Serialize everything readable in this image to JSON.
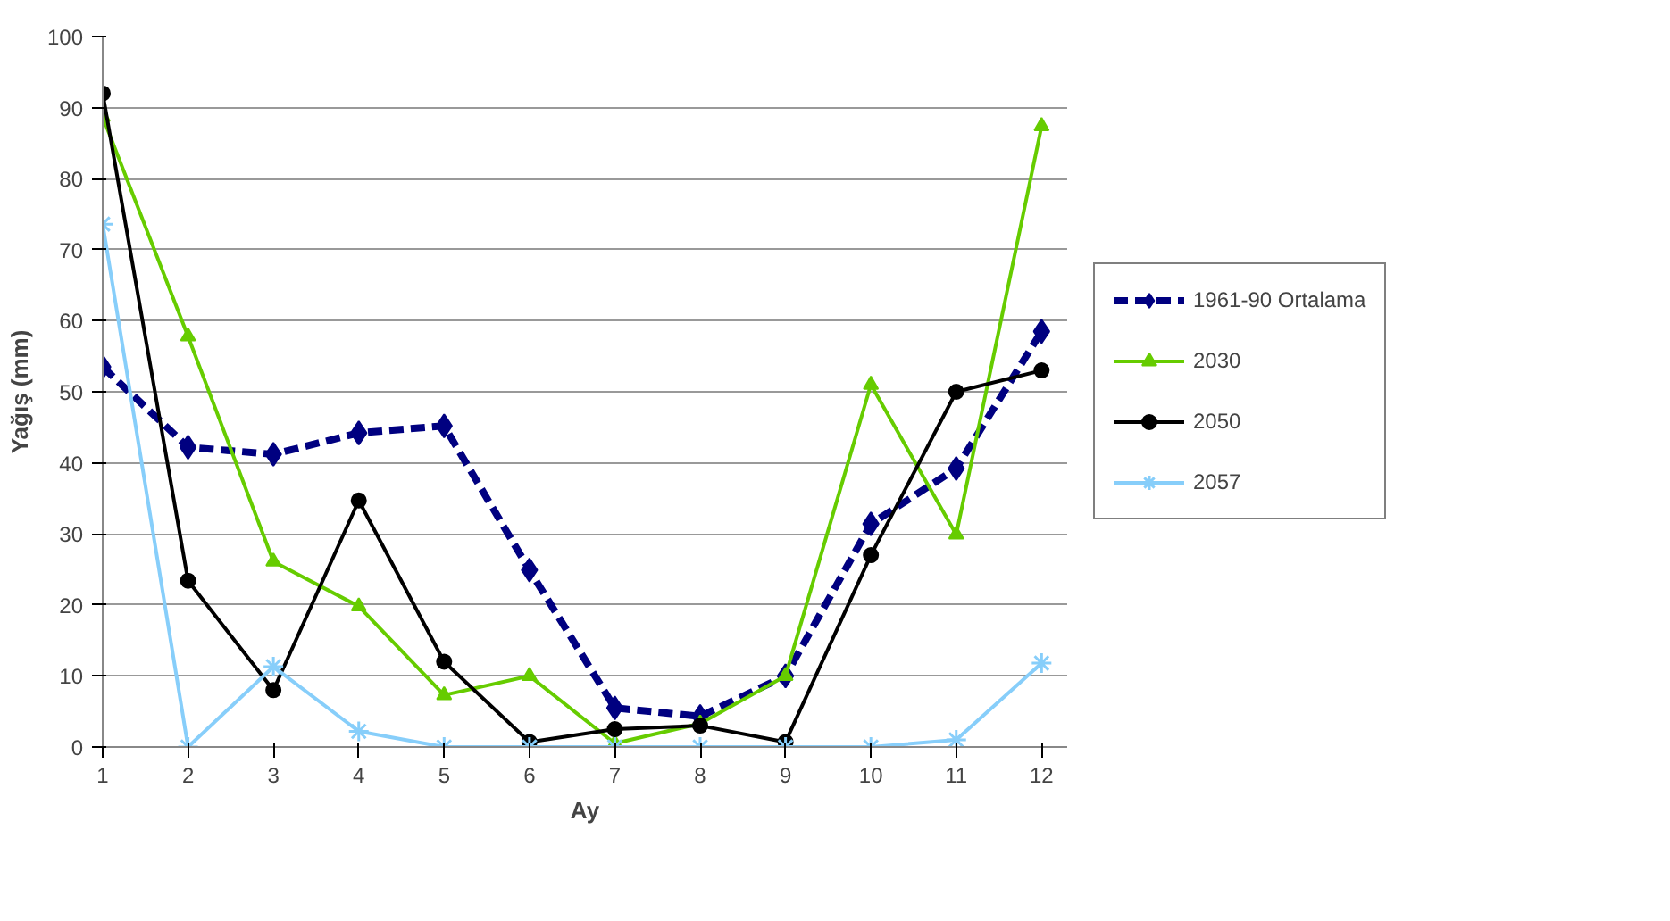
{
  "chart_data": {
    "type": "line",
    "xlabel": "Ay",
    "ylabel": "Yağış (mm)",
    "x": [
      1,
      2,
      3,
      4,
      5,
      6,
      7,
      8,
      9,
      10,
      11,
      12
    ],
    "xlim": [
      1,
      12.3
    ],
    "xticks": [
      1,
      2,
      3,
      4,
      5,
      6,
      7,
      8,
      9,
      10,
      11,
      12
    ],
    "ylim": [
      0,
      100
    ],
    "yticks": [
      0,
      10,
      20,
      30,
      40,
      50,
      60,
      70,
      80,
      90,
      100
    ],
    "grid": "y",
    "legend": "right",
    "series": [
      {
        "name": "1961-90 Ortalama",
        "color": "#000080",
        "marker": "diamond",
        "line_style": "dashed",
        "values": [
          53.5,
          42.2,
          41.2,
          44.2,
          45.2,
          24.9,
          5.5,
          4.3,
          10,
          31.4,
          39.2,
          58.5
        ]
      },
      {
        "name": "2030",
        "color": "#66cc00",
        "marker": "triangle",
        "line_style": "solid",
        "values": [
          88.7,
          57.8,
          26.1,
          19.8,
          7.3,
          10,
          0.5,
          3.3,
          10,
          51,
          29.9,
          87.4
        ]
      },
      {
        "name": "2050",
        "color": "#000000",
        "marker": "circle",
        "line_style": "solid",
        "values": [
          92,
          23.4,
          8,
          34.7,
          12,
          0.7,
          2.5,
          3,
          0.7,
          27,
          50,
          53
        ]
      },
      {
        "name": "2057",
        "color": "#87cefa",
        "marker": "cross",
        "line_style": "solid",
        "values": [
          73.6,
          0,
          11.3,
          2.2,
          0,
          0,
          0,
          0,
          0,
          0,
          1,
          11.8
        ]
      }
    ]
  }
}
